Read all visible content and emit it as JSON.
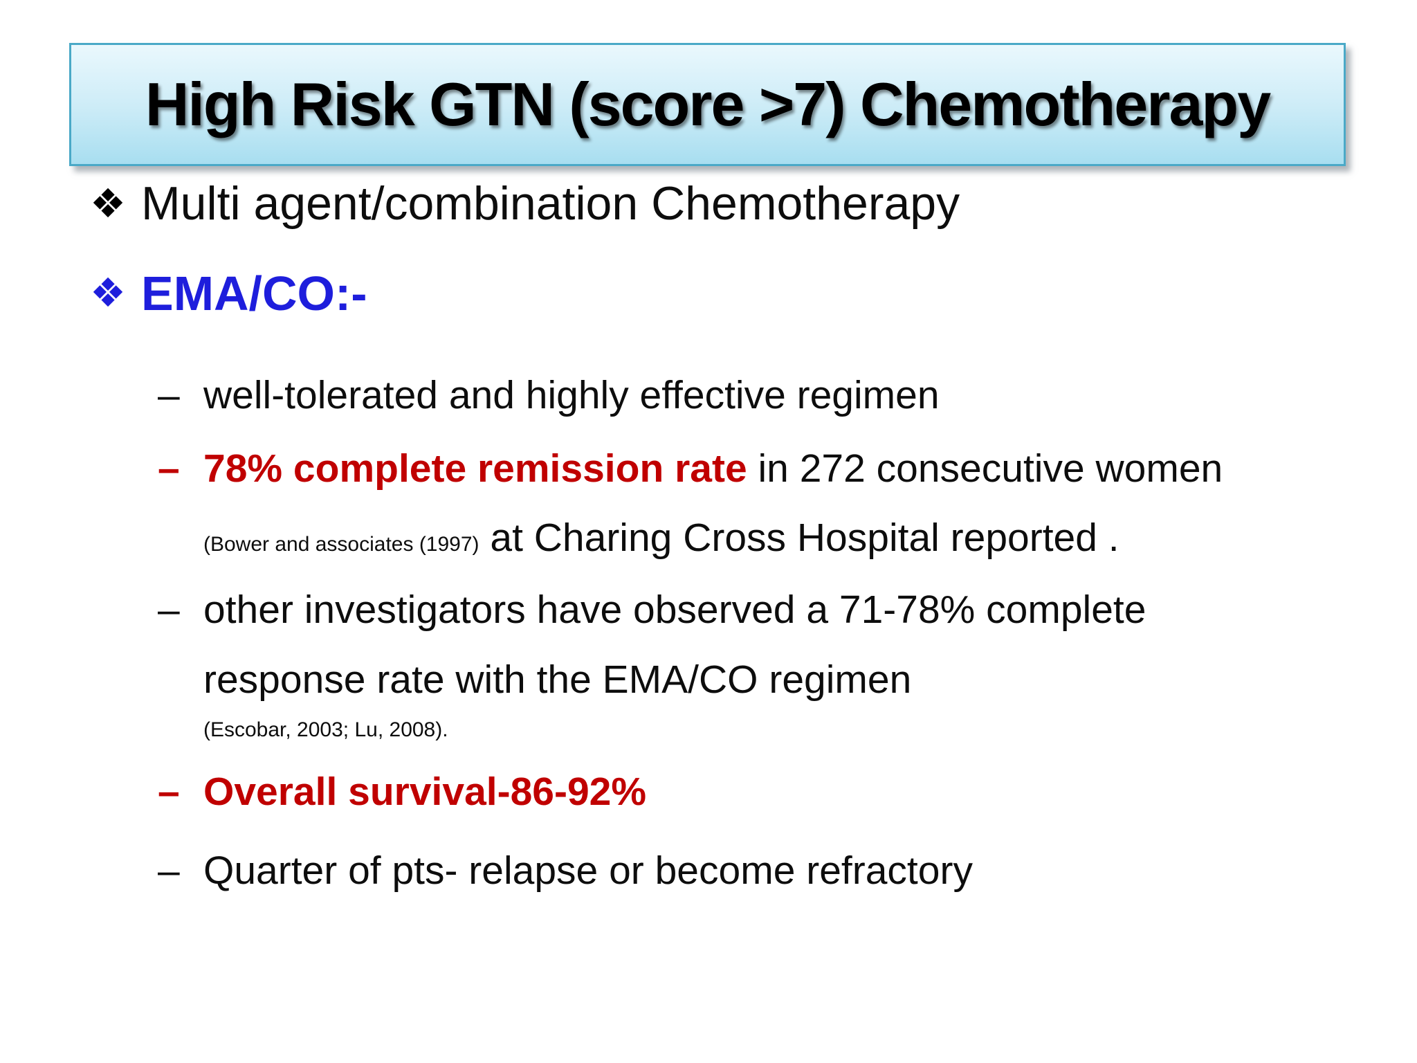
{
  "title": {
    "text": "High Risk GTN (score >7) Chemotherapy"
  },
  "colors": {
    "highlight_red": "#C00000",
    "accent_blue": "#1E1EDC",
    "title_border": "#4AA9C7",
    "title_gradient_top": "#EAF8FD",
    "title_gradient_bottom": "#A8DEF0"
  },
  "bullets": {
    "main1": {
      "symbol": "❖",
      "text": "Multi agent/combination Chemotherapy"
    },
    "main2": {
      "symbol": "❖",
      "text": "EMA/CO:-"
    },
    "sub1": {
      "dash": "–",
      "text": "well-tolerated and highly effective regimen"
    },
    "sub2": {
      "dash": "–",
      "highlight": "78% complete remission rate",
      "normal1": " in 272 consecutive women ",
      "citation": "(Bower and associates (1997)",
      "normal2": " at Charing Cross Hospital reported ."
    },
    "sub3": {
      "dash": "–",
      "text": "other investigators have observed a 71-78% complete response rate with the EMA/CO regimen",
      "citation": "(Escobar, 2003; Lu, 2008)."
    },
    "sub4": {
      "dash": "–",
      "text": "Overall survival-86-92%"
    },
    "sub5": {
      "dash": "–",
      "text": "Quarter of pts- relapse or become refractory"
    }
  }
}
